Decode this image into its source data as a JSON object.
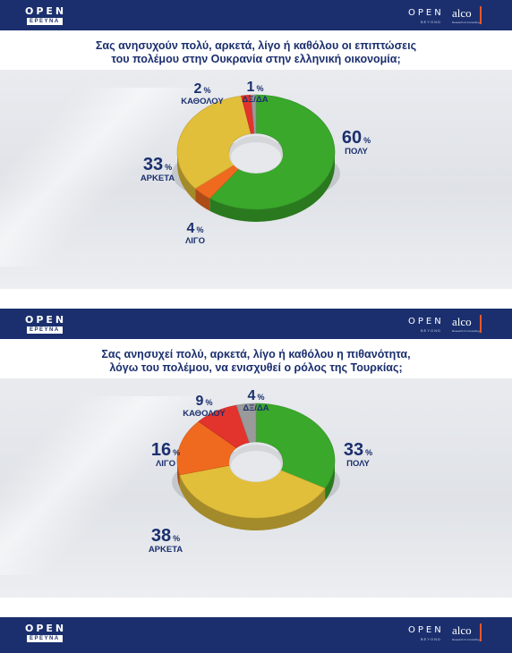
{
  "header": {
    "logo_main": "OPEN",
    "logo_sub": "ΕΡΕΥΝΑ",
    "brand_open": "OPEN",
    "brand_beyond": "BEYOND",
    "brand_alco": "alco",
    "brand_alco_sub": "Research & Consulting"
  },
  "colors": {
    "header_bg": "#1b2f6e",
    "green": "#3aa82b",
    "yellow": "#e2bf3a",
    "orange": "#ef6a1f",
    "red": "#e2332d",
    "grey": "#9a9a9a",
    "text": "#1b2f6e"
  },
  "chart_data": [
    {
      "type": "pie",
      "title": "Σας ανησυχούν πολύ, αρκετά, λίγο ή καθόλου οι επιπτώσεις του πολέμου στην Ουκρανία στην ελληνική οικονομία;",
      "title_lines": [
        "Σας ανησυχούν πολύ, αρκετά, λίγο ή καθόλου οι επιπτώσεις",
        "του πολέμου στην Ουκρανία στην ελληνική οικονομία;"
      ],
      "slices": [
        {
          "label": "ΠΟΛΥ",
          "value": 60,
          "color": "#3aa82b"
        },
        {
          "label": "ΛΙΓΟ",
          "value": 4,
          "color": "#ef6a1f"
        },
        {
          "label": "ΑΡΚΕΤΑ",
          "value": 33,
          "color": "#e2bf3a"
        },
        {
          "label": "ΚΑΘΟΛΟΥ",
          "value": 2,
          "color": "#e2332d"
        },
        {
          "label": "ΔΞ/ΔΑ",
          "value": 1,
          "color": "#9a9a9a"
        }
      ],
      "unit": "%"
    },
    {
      "type": "pie",
      "title": "Σας ανησυχεί πολύ, αρκετά, λίγο ή καθόλου η πιθανότητα, λόγω του πολέμου, να ενισχυθεί ο ρόλος της Τουρκίας;",
      "title_lines": [
        "Σας ανησυχεί πολύ, αρκετά, λίγο ή καθόλου η πιθανότητα,",
        "λόγω του πολέμου, να ενισχυθεί ο ρόλος της Τουρκίας;"
      ],
      "slices": [
        {
          "label": "ΠΟΛΥ",
          "value": 33,
          "color": "#3aa82b"
        },
        {
          "label": "ΑΡΚΕΤΑ",
          "value": 38,
          "color": "#e2bf3a"
        },
        {
          "label": "ΛΙΓΟ",
          "value": 16,
          "color": "#ef6a1f"
        },
        {
          "label": "ΚΑΘΟΛΟΥ",
          "value": 9,
          "color": "#e2332d"
        },
        {
          "label": "ΔΞ/ΔΑ",
          "value": 4,
          "color": "#9a9a9a"
        }
      ],
      "unit": "%"
    }
  ]
}
